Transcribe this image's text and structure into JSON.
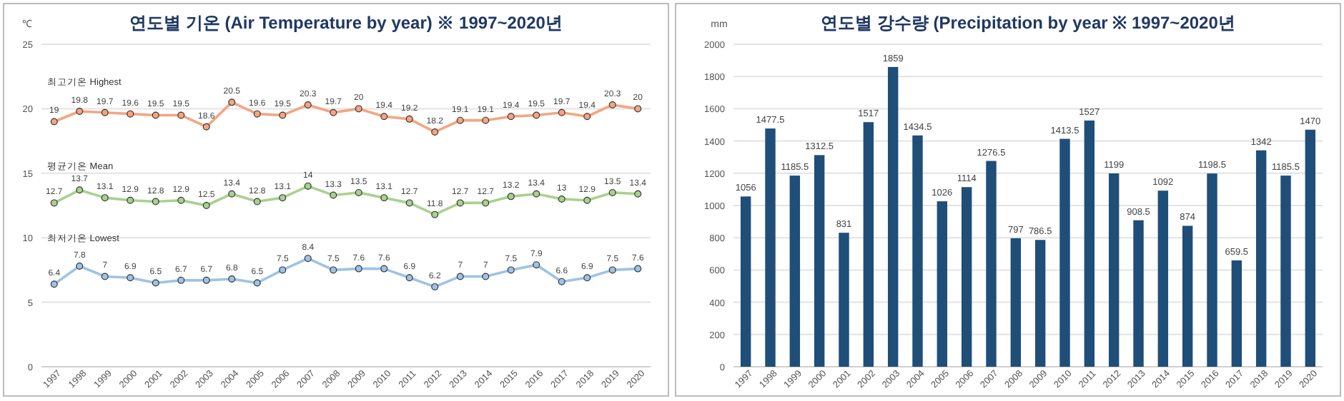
{
  "chart_data": [
    {
      "type": "line",
      "title": "연도별 기온 (Air Temperature by year) ※ 1997~2020년",
      "ylabel": "℃",
      "categories": [
        "1997",
        "1998",
        "1999",
        "2000",
        "2001",
        "2002",
        "2003",
        "2004",
        "2005",
        "2006",
        "2007",
        "2008",
        "2009",
        "2010",
        "2011",
        "2012",
        "2013",
        "2014",
        "2015",
        "2016",
        "2017",
        "2018",
        "2019",
        "2020"
      ],
      "series": [
        {
          "name": "최고기온 Highest",
          "color": "#f4a582",
          "values": [
            19,
            19.8,
            19.7,
            19.6,
            19.5,
            19.5,
            18.6,
            20.5,
            19.6,
            19.5,
            20.3,
            19.7,
            20,
            19.4,
            19.2,
            18.2,
            19.1,
            19.1,
            19.4,
            19.5,
            19.7,
            19.4,
            20.3,
            20
          ]
        },
        {
          "name": "평균기온 Mean",
          "color": "#a9d18e",
          "values": [
            12.7,
            13.7,
            13.1,
            12.9,
            12.8,
            12.9,
            12.5,
            13.4,
            12.8,
            13.1,
            14,
            13.3,
            13.5,
            13.1,
            12.7,
            11.8,
            12.7,
            12.7,
            13.2,
            13.4,
            13,
            12.9,
            13.5,
            13.4
          ]
        },
        {
          "name": "최저기온 Lowest",
          "color": "#9dc3e6",
          "values": [
            6.4,
            7.8,
            7,
            6.9,
            6.5,
            6.7,
            6.7,
            6.8,
            6.5,
            7.5,
            8.4,
            7.5,
            7.6,
            7.6,
            6.9,
            6.2,
            7,
            7,
            7.5,
            7.9,
            6.6,
            6.9,
            7.5,
            7.6
          ]
        }
      ],
      "ylim": [
        0,
        25
      ],
      "yticks": [
        0,
        5,
        10,
        15,
        20,
        25
      ],
      "grid": "y",
      "marker": "circle",
      "data_labels": true
    },
    {
      "type": "bar",
      "title": "연도별 강수량 (Precipitation by year ※ 1997~2020년",
      "ylabel": "mm",
      "categories": [
        "1997",
        "1998",
        "1999",
        "2000",
        "2001",
        "2002",
        "2003",
        "2004",
        "2005",
        "2006",
        "2007",
        "2008",
        "2009",
        "2010",
        "2011",
        "2012",
        "2013",
        "2014",
        "2015",
        "2016",
        "2017",
        "2018",
        "2019",
        "2020"
      ],
      "values": [
        1056,
        1477.5,
        1185.5,
        1312.5,
        831,
        1517,
        1859,
        1434.5,
        1026,
        1114,
        1276.5,
        797,
        786.5,
        1413.5,
        1527,
        1199,
        908.5,
        1092,
        874,
        1198.5,
        659.5,
        1342,
        1185.5,
        1470
      ],
      "color": "#1f4e79",
      "ylim": [
        0,
        2000
      ],
      "yticks": [
        0,
        200,
        400,
        600,
        800,
        1000,
        1200,
        1400,
        1600,
        1800,
        2000
      ],
      "grid": "y",
      "data_labels": true
    }
  ]
}
